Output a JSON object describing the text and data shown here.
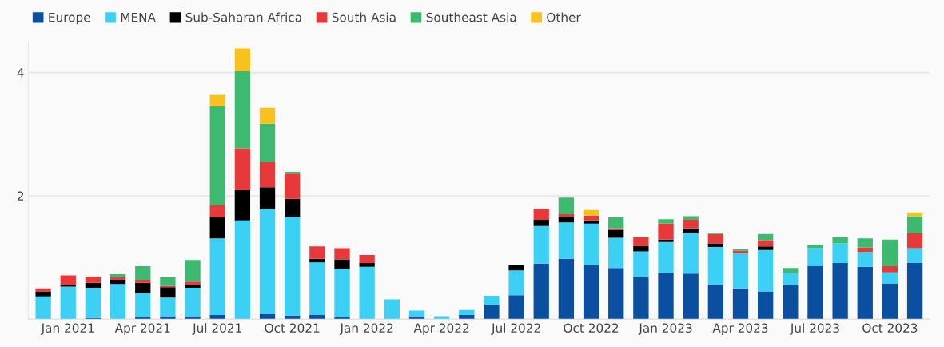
{
  "chart_data": {
    "type": "bar",
    "stacked": true,
    "categories": [
      null,
      "Jan 2021",
      null,
      null,
      "Apr 2021",
      null,
      null,
      "Jul 2021",
      null,
      null,
      "Oct 2021",
      null,
      null,
      "Jan 2022",
      null,
      null,
      "Apr 2022",
      null,
      null,
      "Jul 2022",
      null,
      null,
      "Oct 2022",
      null,
      null,
      "Jan 2023",
      null,
      null,
      "Apr 2023",
      null,
      null,
      "Jul 2023",
      null,
      null,
      "Oct 2023",
      null
    ],
    "series": [
      {
        "name": "Europe",
        "color": "#0a4fa0",
        "values": [
          0,
          0,
          0.02,
          0,
          0.03,
          0.05,
          0.05,
          0.07,
          0,
          0.08,
          0.06,
          0.07,
          0.03,
          0,
          0,
          0.05,
          0,
          0.07,
          0.23,
          0.39,
          0.9,
          0.98,
          0.88,
          0.83,
          0.68,
          0.75,
          0.74,
          0.56,
          0.5,
          0.45,
          0.55,
          0.86,
          0.91,
          0.85,
          0.58,
          0.91
        ]
      },
      {
        "name": "MENA",
        "color": "#3dd0f5",
        "values": [
          0.37,
          0.53,
          0.49,
          0.57,
          0.39,
          0.3,
          0.46,
          1.24,
          1.6,
          1.71,
          1.6,
          0.85,
          0.79,
          0.85,
          0.32,
          0.09,
          0.05,
          0.08,
          0.15,
          0.4,
          0.61,
          0.59,
          0.67,
          0.49,
          0.42,
          0.5,
          0.66,
          0.61,
          0.57,
          0.67,
          0.2,
          0.29,
          0.32,
          0.24,
          0.18,
          0.24
        ]
      },
      {
        "name": "Sub-Saharan Africa",
        "color": "#000000",
        "values": [
          0.08,
          0.02,
          0.08,
          0.07,
          0.17,
          0.17,
          0.05,
          0.34,
          0.49,
          0.35,
          0.29,
          0.06,
          0.15,
          0.06,
          0,
          0,
          0,
          0,
          0,
          0.09,
          0.1,
          0.09,
          0.05,
          0.13,
          0.09,
          0.04,
          0.07,
          0.06,
          0,
          0.06,
          0,
          0,
          0,
          0,
          0,
          0
        ]
      },
      {
        "name": "South Asia",
        "color": "#e8393a",
        "values": [
          0.05,
          0.16,
          0.1,
          0.04,
          0.05,
          0.02,
          0.05,
          0.2,
          0.68,
          0.41,
          0.41,
          0.2,
          0.18,
          0.13,
          0,
          0,
          0,
          0,
          0,
          0,
          0.18,
          0.04,
          0.08,
          0.02,
          0.14,
          0.26,
          0.14,
          0.15,
          0.04,
          0.1,
          0,
          0,
          0,
          0.07,
          0.1,
          0.24
        ]
      },
      {
        "name": "Southeast Asia",
        "color": "#3dba6f",
        "values": [
          0,
          0,
          0,
          0.05,
          0.22,
          0.14,
          0.35,
          1.6,
          1.25,
          0.62,
          0.03,
          0,
          0,
          0,
          0,
          0,
          0,
          0,
          0,
          0,
          0,
          0.27,
          0,
          0.18,
          0,
          0.07,
          0.06,
          0.02,
          0.02,
          0.1,
          0.08,
          0.06,
          0.1,
          0.15,
          0.43,
          0.28
        ]
      },
      {
        "name": "Other",
        "color": "#f7c21d",
        "values": [
          0,
          0,
          0,
          0,
          0,
          0,
          0,
          0.19,
          0.37,
          0.26,
          0,
          0,
          0,
          0,
          0,
          0,
          0,
          0,
          0,
          0,
          0,
          0,
          0.09,
          0,
          0,
          0,
          0,
          0,
          0,
          0,
          0,
          0,
          0,
          0,
          0,
          0.06
        ]
      }
    ],
    "ylim": [
      0,
      4.5
    ],
    "yticks": [
      {
        "value": 0,
        "label": null
      },
      2,
      4
    ],
    "grid": "y",
    "legend": "top left"
  }
}
